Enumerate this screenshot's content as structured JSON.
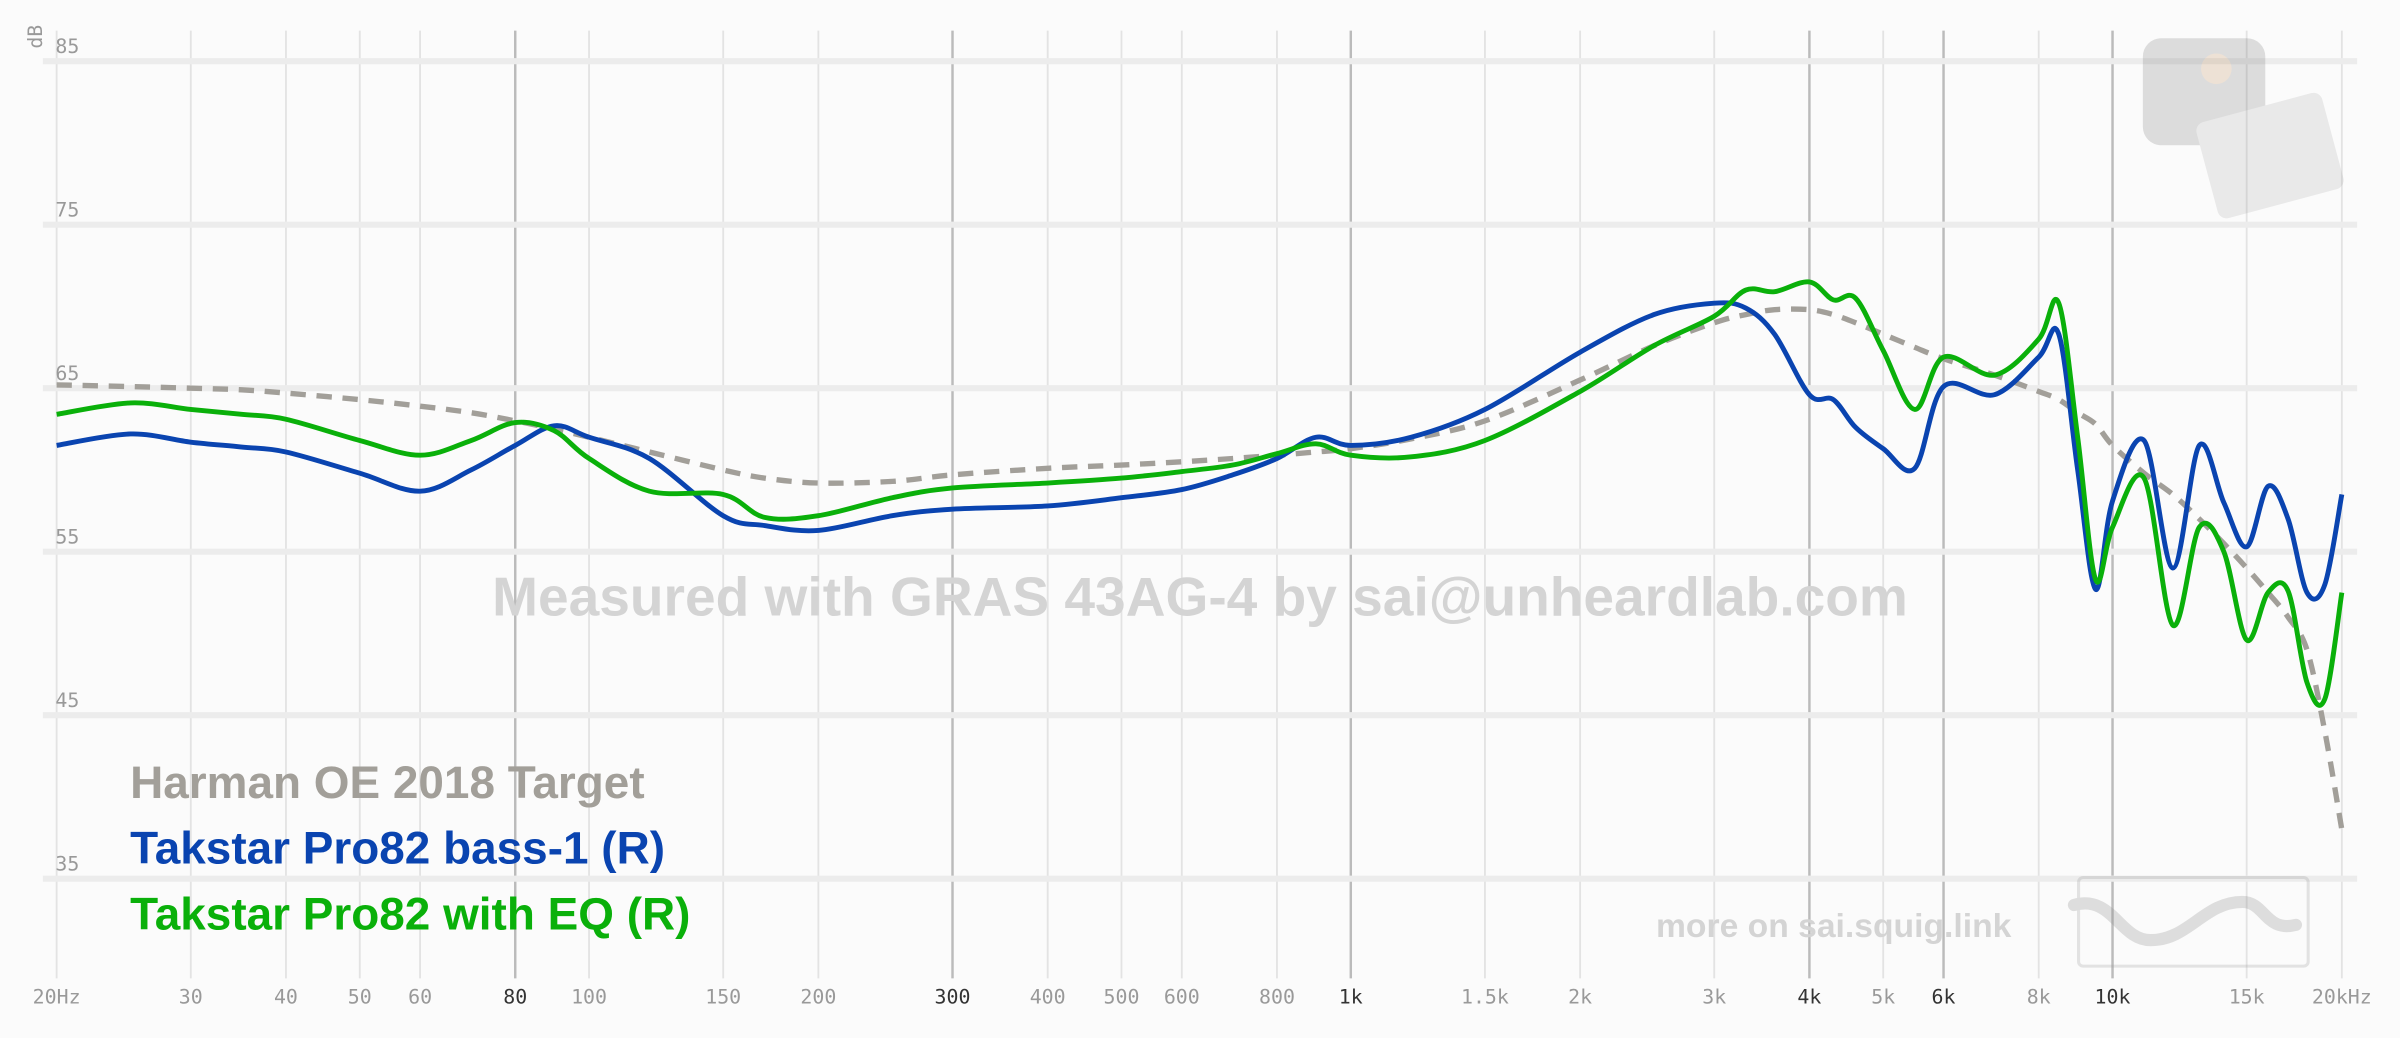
{
  "chart_data": {
    "type": "line",
    "y_label": "dB",
    "watermark": "Measured with GRAS 43AG-4 by sai@unheardlab.com",
    "footer": "more on sai.squig.link",
    "xscale": "log",
    "grid": true,
    "legend_corner": "bottom-left",
    "xlim": [
      20,
      20000
    ],
    "ylim": [
      29,
      87
    ],
    "xticks": [
      {
        "value": 20,
        "label": "20Hz"
      },
      30,
      40,
      50,
      60,
      80,
      100,
      150,
      200,
      300,
      400,
      500,
      600,
      800,
      {
        "value": 1000,
        "label": "1k"
      },
      {
        "value": 1500,
        "label": "1.5k"
      },
      {
        "value": 2000,
        "label": "2k"
      },
      {
        "value": 3000,
        "label": "3k"
      },
      {
        "value": 4000,
        "label": "4k"
      },
      {
        "value": 5000,
        "label": "5k"
      },
      {
        "value": 6000,
        "label": "6k"
      },
      {
        "value": 8000,
        "label": "8k"
      },
      {
        "value": 10000,
        "label": "10k"
      },
      {
        "value": 15000,
        "label": "15k"
      },
      {
        "value": 20000,
        "label": "20kHz"
      }
    ],
    "yticks": [
      35,
      45,
      55,
      65,
      75,
      85
    ],
    "x": [
      20,
      25,
      30,
      35,
      40,
      50,
      60,
      70,
      80,
      90,
      100,
      120,
      150,
      170,
      200,
      250,
      300,
      400,
      500,
      600,
      700,
      800,
      900,
      1000,
      1200,
      1500,
      2000,
      2500,
      3000,
      3300,
      3600,
      4000,
      4300,
      4600,
      5000,
      5500,
      6000,
      7000,
      8000,
      8500,
      9000,
      9500,
      10000,
      11000,
      12000,
      13000,
      14000,
      15000,
      16000,
      17000,
      18000,
      19000,
      20000
    ],
    "series": [
      {
        "name": "Harman OE 2018 Target",
        "color": "#a29f99",
        "dashed": true,
        "values": [
          65.2,
          65.1,
          65.0,
          64.9,
          64.7,
          64.3,
          63.9,
          63.5,
          63.0,
          62.5,
          62.0,
          61.1,
          60.0,
          59.5,
          59.2,
          59.3,
          59.7,
          60.1,
          60.3,
          60.5,
          60.7,
          60.9,
          61.1,
          61.3,
          61.9,
          63.0,
          65.5,
          67.6,
          69.0,
          69.5,
          69.8,
          69.8,
          69.5,
          69.0,
          68.3,
          67.5,
          66.8,
          65.8,
          64.8,
          64.3,
          63.5,
          62.8,
          61.5,
          59.8,
          58.5,
          57.0,
          55.5,
          54.0,
          52.5,
          51.0,
          49.0,
          44.0,
          38.0
        ]
      },
      {
        "name": "Takstar Pro82 bass-1 (R)",
        "color": "#0a44b0",
        "dashed": false,
        "values": [
          61.5,
          62.2,
          61.7,
          61.4,
          61.1,
          59.8,
          58.7,
          60.0,
          61.5,
          62.7,
          62.0,
          60.7,
          57.2,
          56.6,
          56.3,
          57.2,
          57.6,
          57.8,
          58.3,
          58.8,
          59.7,
          60.7,
          62.0,
          61.5,
          62.0,
          63.7,
          67.2,
          69.5,
          70.2,
          69.9,
          68.3,
          64.6,
          64.3,
          62.6,
          61.3,
          60.1,
          65.1,
          64.6,
          66.9,
          68.3,
          60.0,
          52.7,
          58.1,
          61.8,
          54.0,
          61.5,
          58.0,
          55.3,
          59.0,
          57.0,
          52.5,
          53.0,
          58.5
        ]
      },
      {
        "name": "Takstar Pro82 with EQ (R)",
        "color": "#0ab00a",
        "dashed": false,
        "values": [
          63.4,
          64.1,
          63.7,
          63.4,
          63.1,
          61.8,
          60.9,
          61.8,
          62.9,
          62.4,
          60.7,
          58.7,
          58.5,
          57.1,
          57.2,
          58.3,
          58.9,
          59.2,
          59.5,
          59.9,
          60.3,
          61.0,
          61.6,
          60.9,
          60.8,
          61.8,
          64.8,
          67.6,
          69.4,
          71.0,
          70.9,
          71.5,
          70.4,
          70.5,
          67.3,
          63.7,
          66.9,
          65.8,
          68.0,
          70.2,
          62.0,
          53.3,
          56.5,
          59.5,
          50.5,
          56.5,
          55.0,
          49.6,
          52.5,
          52.6,
          47.0,
          46.0,
          52.5
        ]
      }
    ]
  }
}
